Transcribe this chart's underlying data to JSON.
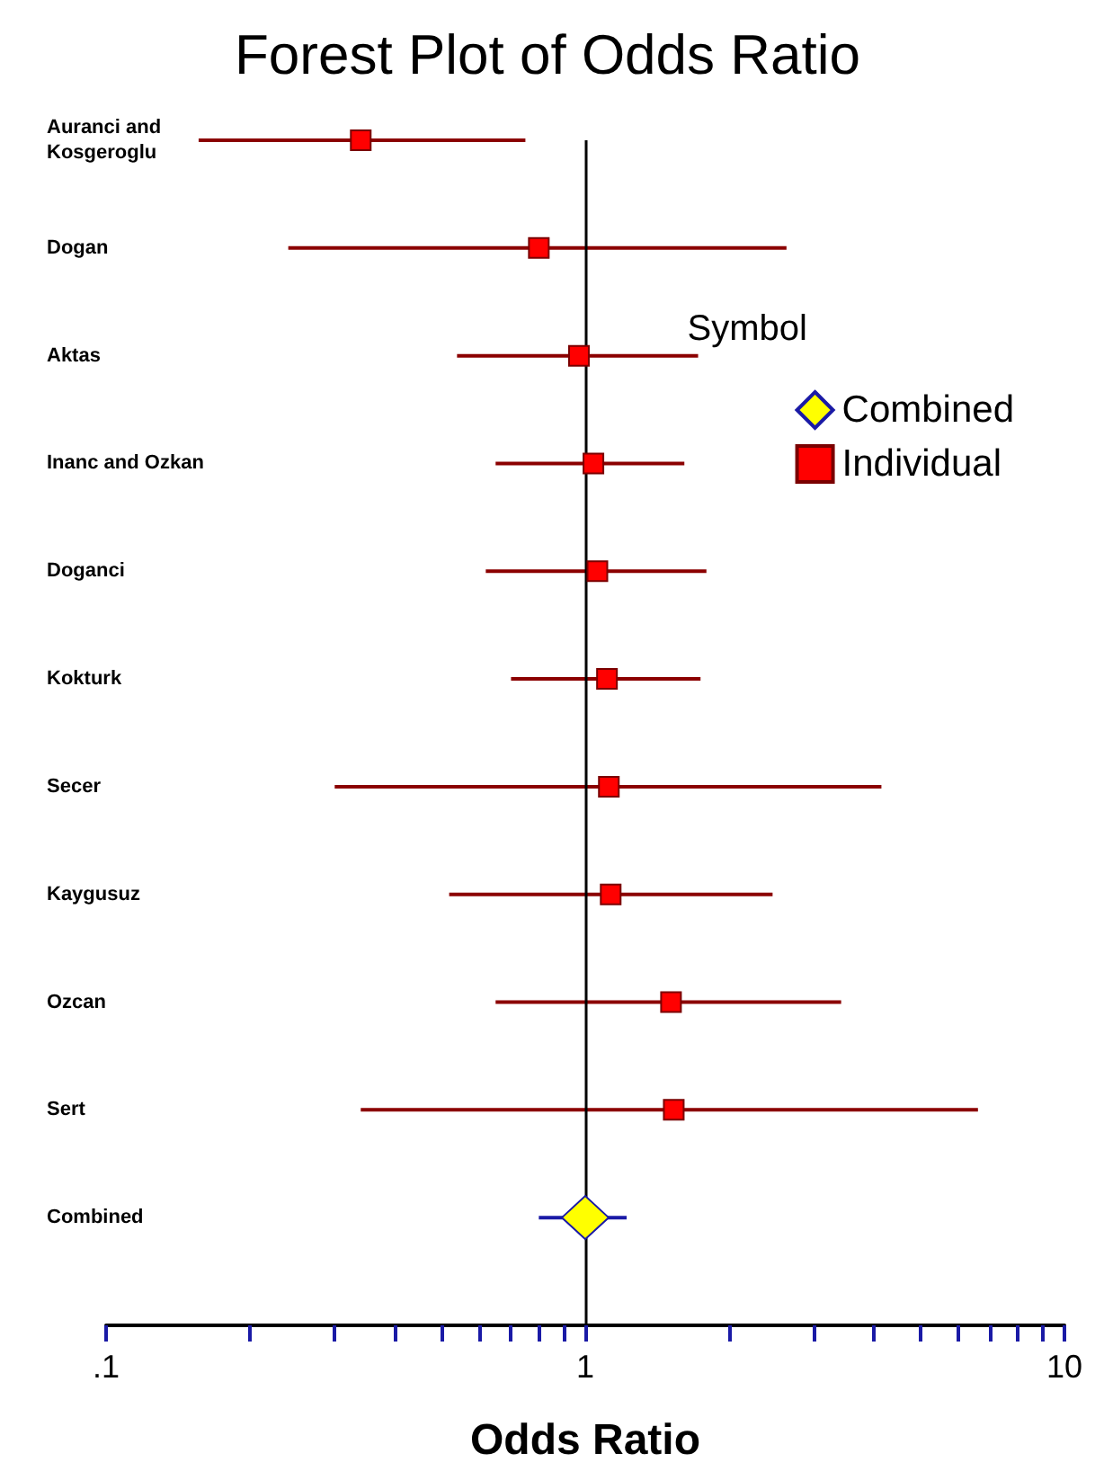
{
  "chart_data": {
    "type": "scatter",
    "orientation": "horizontal",
    "title": "Forest Plot of Odds Ratio",
    "xlabel": "Odds Ratio",
    "categories": [
      "Auranci and Kosgeroglu",
      "Dogan",
      "Aktas",
      "Inanc and Ozkan",
      "Doganci",
      "Kokturk",
      "Secer",
      "Kaygusuz",
      "Ozcan",
      "Sert",
      "Combined"
    ],
    "series": [
      {
        "name": "Combined",
        "color": "#ffff00",
        "marker": "diamond",
        "values": [
          null,
          null,
          null,
          null,
          null,
          null,
          null,
          null,
          null,
          null,
          1.0
        ],
        "errors": [
          null,
          null,
          null,
          null,
          null,
          null,
          null,
          null,
          null,
          null,
          [
            0.8,
            1.22
          ]
        ]
      },
      {
        "name": "Individual",
        "color": "#ff0000",
        "marker": "square",
        "values": [
          0.34,
          0.8,
          0.97,
          1.04,
          1.06,
          1.11,
          1.12,
          1.13,
          1.51,
          1.53,
          null
        ],
        "errors": [
          [
            0.156,
            0.75
          ],
          [
            0.24,
            2.63
          ],
          [
            0.54,
            1.72
          ],
          [
            0.65,
            1.61
          ],
          [
            0.62,
            1.79
          ],
          [
            0.7,
            1.74
          ],
          [
            0.3,
            4.15
          ],
          [
            0.52,
            2.46
          ],
          [
            0.65,
            3.42
          ],
          [
            0.34,
            6.6
          ],
          null
        ]
      }
    ],
    "log": "x",
    "xlim": [
      0.1,
      10
    ],
    "xticks": [
      {
        "value": 0.1,
        "label": ".1"
      },
      {
        "value": 0.2,
        "label": null
      },
      {
        "value": 0.3,
        "label": null
      },
      {
        "value": 0.4,
        "label": null
      },
      {
        "value": 0.5,
        "label": null
      },
      {
        "value": 0.6,
        "label": null
      },
      {
        "value": 0.7,
        "label": null
      },
      {
        "value": 0.8,
        "label": null
      },
      {
        "value": 0.9,
        "label": null
      },
      1,
      {
        "value": 2,
        "label": null
      },
      {
        "value": 3,
        "label": null
      },
      {
        "value": 4,
        "label": null
      },
      {
        "value": 5,
        "label": null
      },
      {
        "value": 6,
        "label": null
      },
      {
        "value": 7,
        "label": null
      },
      {
        "value": 8,
        "label": null
      },
      {
        "value": 9,
        "label": null
      },
      10
    ],
    "ref_lines": [
      {
        "axis": "x",
        "value": 1,
        "color": "#000000"
      }
    ],
    "legend": "top right",
    "legend_title": "Symbol",
    "grid": false
  }
}
